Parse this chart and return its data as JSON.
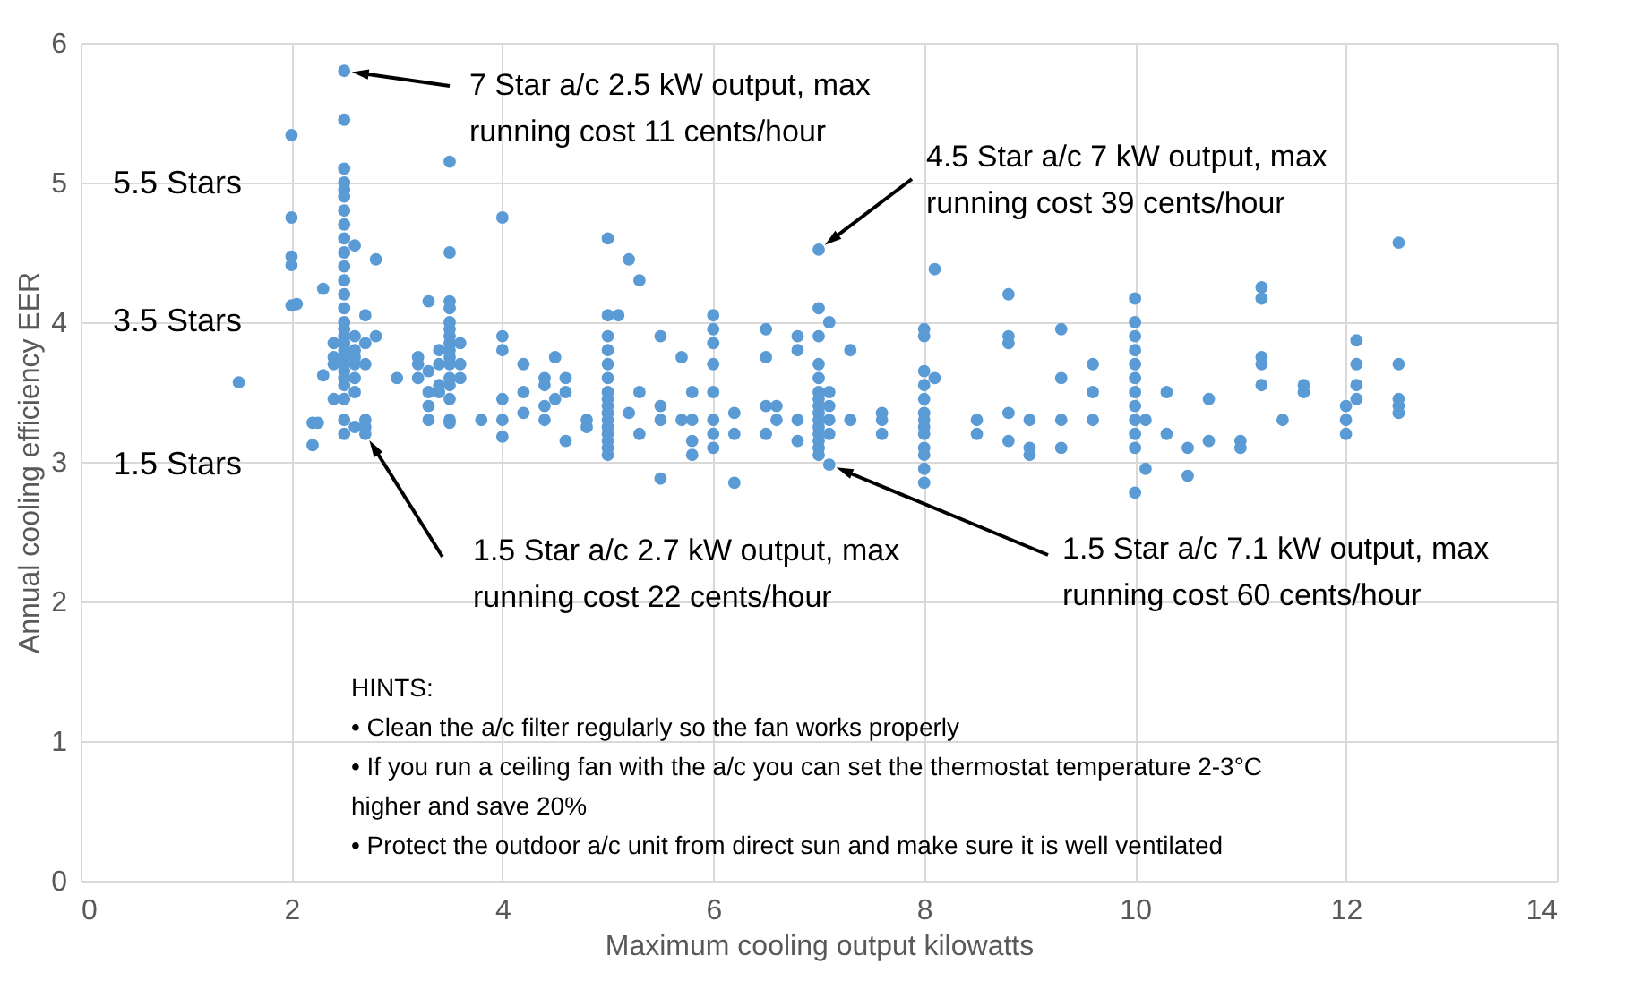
{
  "chart_data": {
    "type": "scatter",
    "xlabel": "Maximum cooling output kilowatts",
    "ylabel": "Annual cooling efficiency EER",
    "color": "#5b9bd5",
    "marker": "circle",
    "grid": true,
    "xlim": [
      0,
      14
    ],
    "xticks": [
      0,
      2,
      4,
      6,
      8,
      10,
      12,
      14
    ],
    "ylim": [
      0,
      6
    ],
    "yticks": [
      0,
      1,
      2,
      3,
      4,
      5,
      6
    ],
    "x": [
      1.5,
      2.0,
      2.0,
      2.0,
      2.0,
      2.0,
      2.05,
      2.2,
      2.2,
      2.25,
      2.3,
      2.3,
      2.5,
      2.5,
      2.5,
      2.5,
      2.5,
      2.5,
      2.5,
      2.5,
      2.5,
      2.5,
      2.5,
      2.5,
      2.5,
      2.5,
      2.5,
      2.5,
      2.5,
      2.5,
      2.5,
      2.5,
      2.5,
      2.5,
      2.5,
      2.5,
      2.5,
      2.5,
      2.5,
      2.4,
      2.4,
      2.4,
      2.4,
      2.6,
      2.6,
      2.6,
      2.6,
      2.6,
      2.6,
      2.6,
      2.6,
      2.7,
      2.7,
      2.7,
      2.7,
      2.7,
      2.7,
      2.8,
      2.8,
      3.0,
      3.2,
      3.2,
      3.2,
      3.3,
      3.3,
      3.3,
      3.3,
      3.3,
      3.4,
      3.4,
      3.4,
      3.4,
      3.5,
      3.5,
      3.5,
      3.5,
      3.5,
      3.5,
      3.5,
      3.5,
      3.5,
      3.5,
      3.5,
      3.5,
      3.5,
      3.5,
      3.5,
      3.5,
      3.6,
      3.6,
      3.6,
      3.8,
      4.0,
      4.0,
      4.0,
      4.0,
      4.0,
      4.0,
      4.2,
      4.2,
      4.2,
      4.4,
      4.4,
      4.4,
      4.4,
      4.5,
      4.5,
      4.6,
      4.6,
      4.6,
      4.8,
      4.8,
      5.0,
      5.0,
      5.0,
      5.0,
      5.0,
      5.0,
      5.0,
      5.0,
      5.0,
      5.0,
      5.0,
      5.0,
      5.0,
      5.0,
      5.0,
      5.0,
      5.1,
      5.2,
      5.2,
      5.3,
      5.3,
      5.3,
      5.5,
      5.5,
      5.5,
      5.5,
      5.7,
      5.7,
      5.8,
      5.8,
      5.8,
      5.8,
      6.0,
      6.0,
      6.0,
      6.0,
      6.0,
      6.0,
      6.0,
      6.0,
      6.2,
      6.2,
      6.2,
      6.5,
      6.5,
      6.5,
      6.5,
      6.6,
      6.6,
      6.8,
      6.8,
      6.8,
      6.8,
      7.0,
      7.0,
      7.0,
      7.0,
      7.0,
      7.0,
      7.0,
      7.0,
      7.0,
      7.0,
      7.0,
      7.0,
      7.0,
      7.0,
      7.0,
      7.1,
      7.1,
      7.1,
      7.1,
      7.1,
      7.1,
      7.3,
      7.3,
      7.6,
      7.6,
      7.6,
      8.0,
      8.0,
      8.0,
      8.0,
      8.0,
      8.0,
      8.0,
      8.0,
      8.0,
      8.0,
      8.0,
      8.0,
      8.0,
      8.1,
      8.1,
      8.5,
      8.5,
      8.8,
      8.8,
      8.8,
      8.8,
      8.8,
      9.0,
      9.0,
      9.0,
      9.3,
      9.3,
      9.3,
      9.3,
      9.6,
      9.6,
      9.6,
      10.0,
      10.0,
      10.0,
      10.0,
      10.0,
      10.0,
      10.0,
      10.0,
      10.0,
      10.0,
      10.0,
      10.0,
      10.1,
      10.1,
      10.3,
      10.3,
      10.5,
      10.5,
      10.7,
      10.7,
      11.0,
      11.0,
      11.2,
      11.2,
      11.2,
      11.2,
      11.2,
      11.4,
      11.6,
      11.6,
      12.0,
      12.0,
      12.0,
      12.1,
      12.1,
      12.1,
      12.1,
      12.5,
      12.5,
      12.5,
      12.5,
      12.5
    ],
    "values": [
      3.57,
      5.34,
      4.75,
      4.47,
      4.41,
      4.12,
      4.13,
      3.28,
      3.12,
      3.28,
      4.24,
      3.62,
      5.8,
      5.45,
      5.1,
      5.0,
      4.95,
      4.9,
      4.8,
      4.7,
      4.6,
      4.5,
      4.4,
      4.3,
      4.2,
      4.1,
      4.0,
      3.95,
      3.9,
      3.85,
      3.8,
      3.75,
      3.7,
      3.65,
      3.6,
      3.55,
      3.45,
      3.3,
      3.2,
      3.85,
      3.75,
      3.7,
      3.45,
      3.9,
      3.8,
      3.75,
      3.7,
      3.6,
      3.5,
      3.25,
      4.55,
      3.85,
      3.7,
      3.3,
      3.2,
      3.25,
      4.05,
      3.9,
      4.45,
      3.6,
      3.6,
      3.75,
      3.7,
      3.65,
      3.5,
      3.4,
      3.3,
      4.15,
      3.8,
      3.7,
      3.55,
      3.5,
      5.15,
      4.5,
      4.15,
      4.1,
      4.0,
      3.95,
      3.9,
      3.85,
      3.8,
      3.75,
      3.7,
      3.6,
      3.55,
      3.45,
      3.3,
      3.28,
      3.85,
      3.7,
      3.6,
      3.3,
      4.75,
      3.9,
      3.8,
      3.45,
      3.3,
      3.18,
      3.7,
      3.5,
      3.35,
      3.6,
      3.55,
      3.4,
      3.3,
      3.75,
      3.45,
      3.6,
      3.5,
      3.15,
      3.3,
      3.25,
      4.6,
      4.05,
      3.9,
      3.8,
      3.7,
      3.6,
      3.5,
      3.45,
      3.4,
      3.35,
      3.3,
      3.25,
      3.2,
      3.15,
      3.1,
      3.05,
      4.05,
      4.45,
      3.35,
      4.3,
      3.5,
      3.2,
      3.9,
      3.4,
      3.3,
      2.88,
      3.75,
      3.3,
      3.5,
      3.3,
      3.15,
      3.05,
      4.05,
      3.95,
      3.85,
      3.7,
      3.5,
      3.3,
      3.2,
      3.1,
      3.35,
      3.2,
      2.85,
      3.95,
      3.75,
      3.4,
      3.2,
      3.4,
      3.3,
      3.9,
      3.8,
      3.3,
      3.15,
      4.52,
      4.1,
      3.9,
      3.7,
      3.6,
      3.5,
      3.45,
      3.4,
      3.35,
      3.3,
      3.25,
      3.2,
      3.15,
      3.1,
      3.05,
      4.0,
      3.5,
      3.4,
      3.3,
      3.2,
      2.98,
      3.8,
      3.3,
      3.35,
      3.3,
      3.2,
      3.95,
      3.9,
      3.65,
      3.55,
      3.45,
      3.35,
      3.3,
      3.25,
      3.2,
      3.1,
      3.05,
      2.95,
      2.85,
      4.38,
      3.6,
      3.3,
      3.2,
      4.2,
      3.9,
      3.85,
      3.35,
      3.15,
      3.3,
      3.1,
      3.05,
      3.95,
      3.6,
      3.3,
      3.1,
      3.7,
      3.5,
      3.3,
      4.17,
      4.0,
      3.9,
      3.8,
      3.7,
      3.6,
      3.5,
      3.4,
      3.3,
      3.2,
      3.1,
      2.78,
      3.3,
      2.95,
      3.5,
      3.2,
      3.1,
      2.9,
      3.45,
      3.15,
      3.15,
      3.1,
      4.25,
      4.17,
      3.75,
      3.7,
      3.55,
      3.3,
      3.5,
      3.55,
      3.4,
      3.3,
      3.2,
      3.87,
      3.7,
      3.55,
      3.45,
      4.57,
      3.7,
      3.45,
      3.4,
      3.35
    ],
    "annotations": [
      "5.5 Stars",
      "3.5 Stars",
      "1.5 Stars",
      {
        "text": "7 Star a/c 2.5 kW output, max\nrunning cost 11 cents/hour",
        "x": 2.5,
        "y": 5.8
      },
      {
        "text": "4.5 Star a/c 7 kW output, max\nrunning cost 39 cents/hour",
        "x": 7.0,
        "y": 4.52
      },
      {
        "text": "1.5 Star a/c 2.7 kW output, max\nrunning cost 22 cents/hour",
        "x": 2.7,
        "y": 3.2
      },
      {
        "text": "1.5 Star a/c 7.1 kW output, max\nrunning cost 60 cents/hour",
        "x": 7.1,
        "y": 2.98
      },
      "HINTS:\n• Clean the a/c filter regularly so the fan works properly\n• If you run a ceiling fan with the a/c you can set the thermostat temperature 2-3°C\n   higher and save 20%\n• Protect the outdoor a/c unit from direct sun and make sure it is well ventilated"
    ]
  }
}
